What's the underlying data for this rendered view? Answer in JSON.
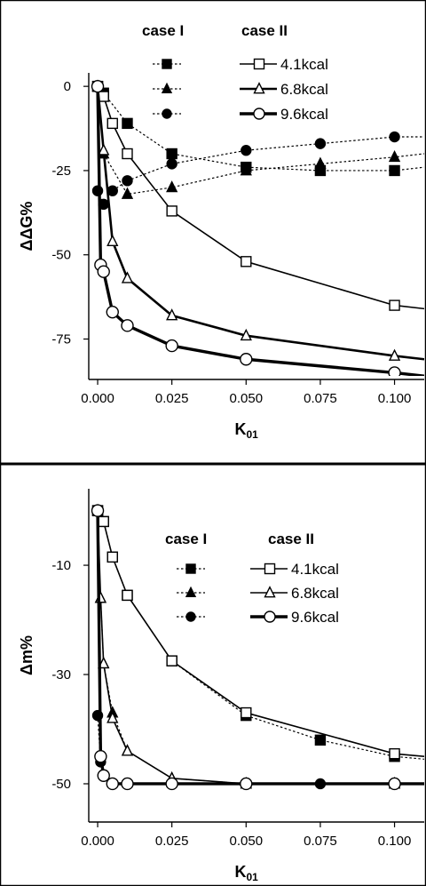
{
  "chart_data": [
    {
      "type": "line",
      "xlabel": "K01",
      "ylabel": "ΔΔG%",
      "xlim": [
        -0.003,
        0.11
      ],
      "ylim": [
        -87,
        4
      ],
      "xticks": [
        "0.000",
        "0.025",
        "0.050",
        "0.075",
        "0.100"
      ],
      "xtick_values": [
        0,
        0.025,
        0.05,
        0.075,
        0.1
      ],
      "yticks": [
        "0",
        "-25",
        "-50",
        "-75"
      ],
      "ytick_values": [
        0,
        -25,
        -50,
        -75
      ],
      "grid": false,
      "legend_headers": [
        "case I",
        "case II"
      ],
      "legend_placement": "top-center",
      "series": [
        {
          "name": "4.1kcal",
          "case": "case I",
          "marker": "square",
          "fill": "filled",
          "line": "dotted",
          "x": [
            0,
            0.002,
            0.01,
            0.025,
            0.05,
            0.075,
            0.1,
            0.11
          ],
          "y": [
            0,
            -2,
            -11,
            -20,
            -24,
            -25,
            -25,
            -24
          ]
        },
        {
          "name": "6.8kcal",
          "case": "case I",
          "marker": "triangle",
          "fill": "filled",
          "line": "dotted",
          "x": [
            0.002,
            0.01,
            0.025,
            0.05,
            0.075,
            0.1,
            0.11
          ],
          "y": [
            -20,
            -32,
            -30,
            -25,
            -23,
            -21,
            -20
          ]
        },
        {
          "name": "9.6kcal",
          "case": "case I",
          "marker": "circle",
          "fill": "filled",
          "line": "dotted",
          "x": [
            0,
            0.002,
            0.005,
            0.01,
            0.025,
            0.05,
            0.075,
            0.1,
            0.11
          ],
          "y": [
            -31,
            -35,
            -31,
            -28,
            -23,
            -19,
            -17,
            -15,
            -15
          ]
        },
        {
          "name": "4.1kcal",
          "case": "case II",
          "marker": "square",
          "fill": "open",
          "line": "solid",
          "x": [
            0,
            0.002,
            0.005,
            0.01,
            0.025,
            0.05,
            0.1,
            0.11
          ],
          "y": [
            0,
            -3,
            -11,
            -20,
            -37,
            -52,
            -65,
            -66
          ]
        },
        {
          "name": "6.8kcal",
          "case": "case II",
          "marker": "triangle",
          "fill": "open",
          "line": "solid-thick",
          "x": [
            0,
            0.002,
            0.005,
            0.01,
            0.025,
            0.05,
            0.1,
            0.11
          ],
          "y": [
            0,
            -19,
            -46,
            -57,
            -68,
            -74,
            -80,
            -81
          ]
        },
        {
          "name": "9.6kcal",
          "case": "case II",
          "marker": "circle",
          "fill": "open",
          "line": "solid-thicker",
          "x": [
            0,
            0.001,
            0.002,
            0.005,
            0.01,
            0.025,
            0.05,
            0.1,
            0.11
          ],
          "y": [
            0,
            -53,
            -55,
            -67,
            -71,
            -77,
            -81,
            -85,
            -86
          ]
        }
      ]
    },
    {
      "type": "line",
      "xlabel": "K01",
      "ylabel": "Δm%",
      "xlim": [
        -0.003,
        0.11
      ],
      "ylim": [
        -57,
        4
      ],
      "xticks": [
        "0.000",
        "0.025",
        "0.050",
        "0.075",
        "0.100"
      ],
      "xtick_values": [
        0,
        0.025,
        0.05,
        0.075,
        0.1
      ],
      "yticks": [
        "-10",
        "-30",
        "-50"
      ],
      "ytick_values": [
        -10,
        -30,
        -50
      ],
      "grid": false,
      "legend_headers": [
        "case I",
        "case II"
      ],
      "legend_placement": "top-right",
      "series": [
        {
          "name": "4.1kcal",
          "case": "case I",
          "marker": "square",
          "fill": "filled",
          "line": "dotted",
          "x": [
            0,
            0.002,
            0.005,
            0.01,
            0.025,
            0.05,
            0.075,
            0.1,
            0.11
          ],
          "y": [
            0,
            -2,
            -8.5,
            -15.5,
            -27.5,
            -37.5,
            -42,
            -45,
            -45.5
          ]
        },
        {
          "name": "6.8kcal",
          "case": "case I",
          "marker": "triangle",
          "fill": "filled",
          "line": "dotted",
          "x": [
            0.001,
            0.002,
            0.005,
            0.01,
            0.025,
            0.05,
            0.1
          ],
          "y": [
            -16,
            -28,
            -37,
            -44,
            -49,
            -50,
            -50
          ]
        },
        {
          "name": "9.6kcal",
          "case": "case I",
          "marker": "circle",
          "fill": "filled",
          "line": "dotted",
          "x": [
            0,
            0.001,
            0.002,
            0.005,
            0.05,
            0.075,
            0.1
          ],
          "y": [
            -37.5,
            -46,
            -48.5,
            -50,
            -50,
            -50,
            -50
          ]
        },
        {
          "name": "4.1kcal",
          "case": "case II",
          "marker": "square",
          "fill": "open",
          "line": "solid",
          "x": [
            0,
            0.002,
            0.005,
            0.01,
            0.025,
            0.05,
            0.1,
            0.11
          ],
          "y": [
            0,
            -2,
            -8.5,
            -15.5,
            -27.5,
            -37,
            -44.5,
            -45
          ]
        },
        {
          "name": "6.8kcal",
          "case": "case II",
          "marker": "triangle",
          "fill": "open",
          "line": "solid",
          "x": [
            0,
            0.001,
            0.002,
            0.005,
            0.01,
            0.025,
            0.05,
            0.1
          ],
          "y": [
            0,
            -16,
            -28,
            -38,
            -44,
            -49,
            -50,
            -50
          ]
        },
        {
          "name": "9.6kcal",
          "case": "case II",
          "marker": "circle",
          "fill": "open",
          "line": "solid-thicker",
          "x": [
            0,
            0.001,
            0.002,
            0.005,
            0.01,
            0.025,
            0.05,
            0.1,
            0.11
          ],
          "y": [
            0,
            -45,
            -48.5,
            -50,
            -50,
            -50,
            -50,
            -50,
            -50
          ]
        }
      ]
    }
  ]
}
